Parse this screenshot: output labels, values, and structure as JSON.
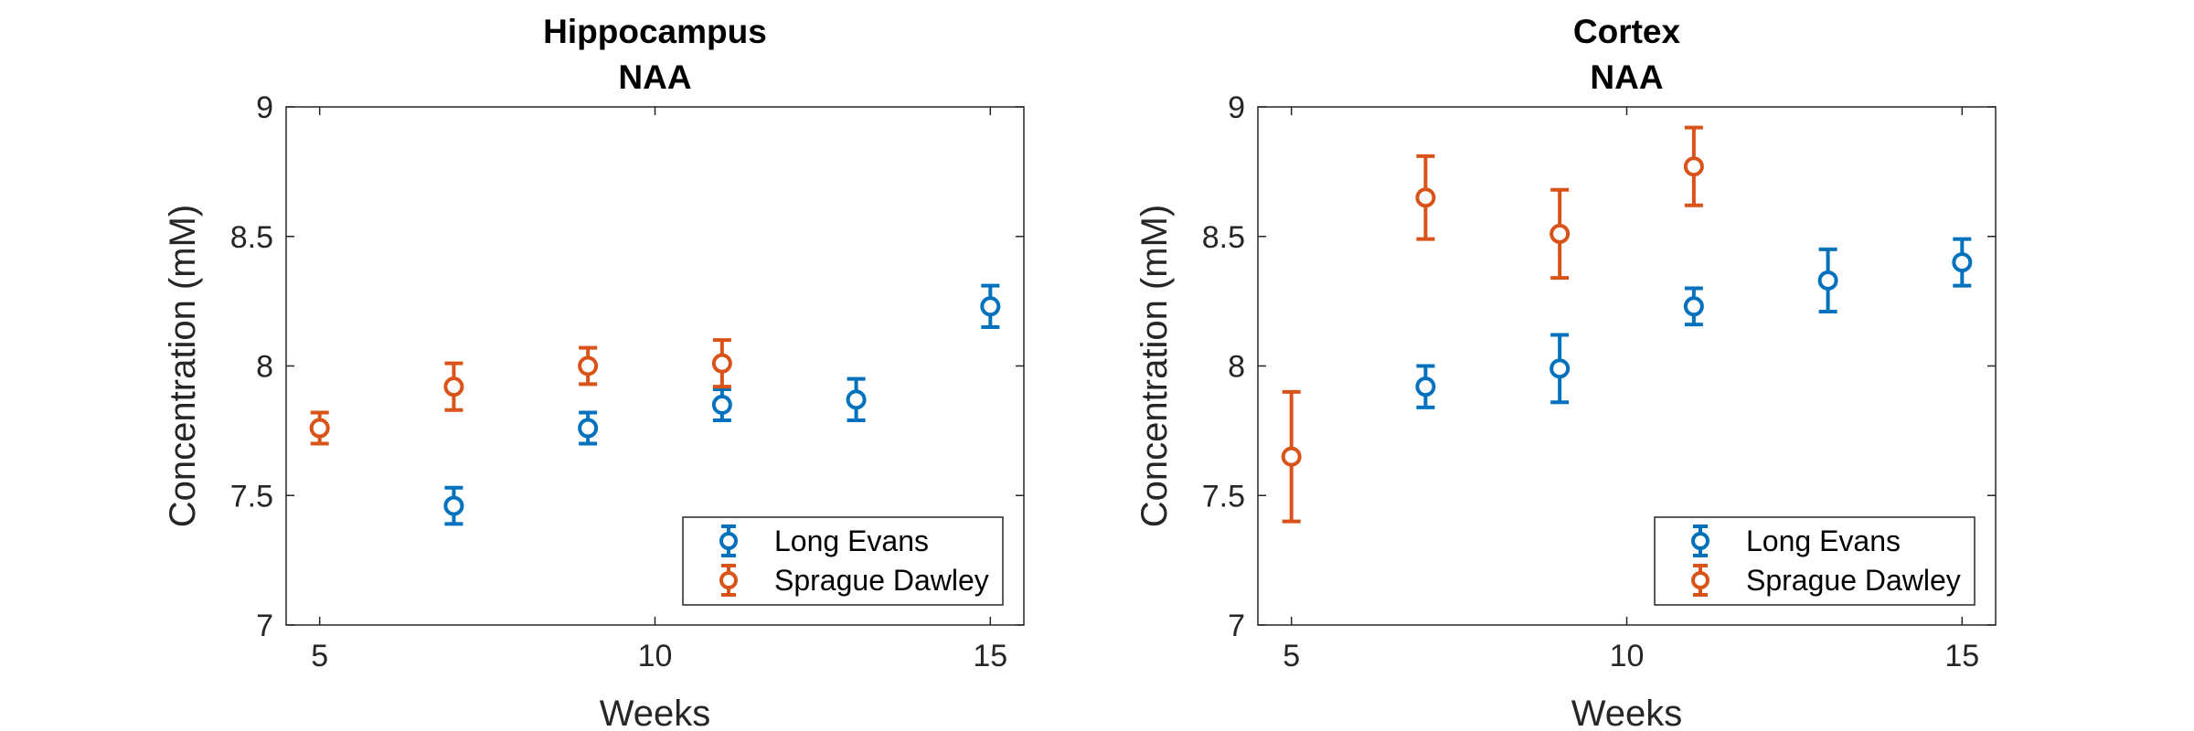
{
  "chart_data": [
    {
      "type": "scatter",
      "title": [
        "Hippocampus",
        "NAA"
      ],
      "xlabel": "Weeks",
      "ylabel": "Concentration (mM)",
      "xlim": [
        4.5,
        15.5
      ],
      "ylim": [
        7,
        9
      ],
      "xticks": [
        5,
        10,
        15
      ],
      "yticks": [
        7,
        7.5,
        8,
        8.5,
        9
      ],
      "grid": false,
      "legend_position": "bottom-right",
      "series": [
        {
          "name": "Long Evans",
          "color": "#0072BD",
          "x": [
            7,
            9,
            11,
            13,
            15
          ],
          "y": [
            7.46,
            7.76,
            7.85,
            7.87,
            8.23
          ],
          "err": [
            0.07,
            0.06,
            0.06,
            0.08,
            0.08
          ]
        },
        {
          "name": "Sprague Dawley",
          "color": "#D95319",
          "x": [
            5,
            7,
            9,
            11
          ],
          "y": [
            7.76,
            7.92,
            8.0,
            8.01
          ],
          "err": [
            0.06,
            0.09,
            0.07,
            0.09
          ]
        }
      ]
    },
    {
      "type": "scatter",
      "title": [
        "Cortex",
        "NAA"
      ],
      "xlabel": "Weeks",
      "ylabel": "Concentration (mM)",
      "xlim": [
        4.5,
        15.5
      ],
      "ylim": [
        7,
        9
      ],
      "xticks": [
        5,
        10,
        15
      ],
      "yticks": [
        7,
        7.5,
        8,
        8.5,
        9
      ],
      "grid": false,
      "legend_position": "bottom-right",
      "series": [
        {
          "name": "Long Evans",
          "color": "#0072BD",
          "x": [
            7,
            9,
            11,
            13,
            15
          ],
          "y": [
            7.92,
            7.99,
            8.23,
            8.33,
            8.4
          ],
          "err": [
            0.08,
            0.13,
            0.07,
            0.12,
            0.09
          ]
        },
        {
          "name": "Sprague Dawley",
          "color": "#D95319",
          "x": [
            5,
            7,
            9,
            11
          ],
          "y": [
            7.65,
            8.65,
            8.51,
            8.77
          ],
          "err": [
            0.25,
            0.16,
            0.17,
            0.15
          ]
        }
      ]
    }
  ]
}
